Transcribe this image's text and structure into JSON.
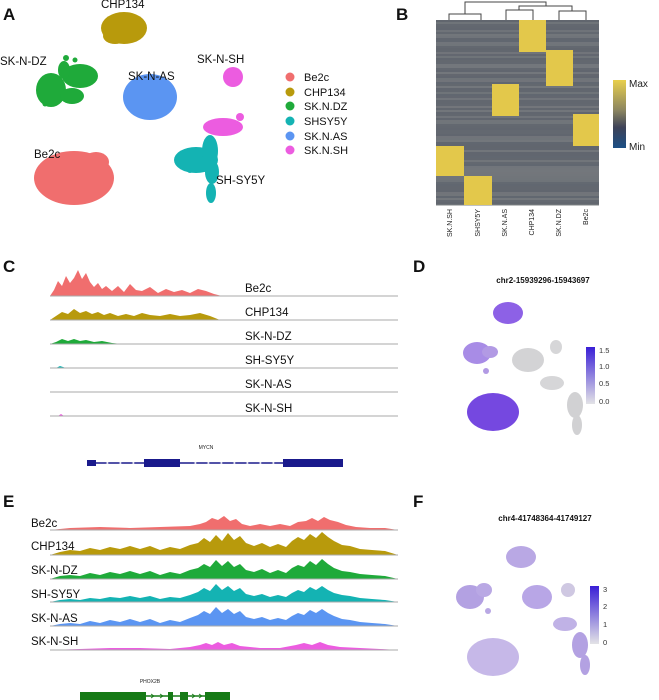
{
  "panels": {
    "A": "A",
    "B": "B",
    "C": "C",
    "D": "D",
    "E": "E",
    "F": "F"
  },
  "colors": {
    "Be2c": "#f06e6e",
    "CHP134": "#b89a0c",
    "SK.N.DZ": "#1faa3a",
    "SHSY5Y": "#14b3b3",
    "SK.N.AS": "#5b95f2",
    "SK.N.SH": "#ec5ce0",
    "mycn_gene": "#1a1a8c",
    "phox2b_gene": "#167a16",
    "hm_max": "#e3c84b",
    "hm_mid": "#3a3f5c",
    "hm_min": "#1e3a6e",
    "hm_bg": "#676c74"
  },
  "umap_labels": [
    "CHP134",
    "SK-N-DZ",
    "SK-N-AS",
    "SK-N-SH",
    "Be2c",
    "SH-SY5Y"
  ],
  "legend": [
    "Be2c",
    "CHP134",
    "SK.N.DZ",
    "SHSY5Y",
    "SK.N.AS",
    "SK.N.SH"
  ],
  "heatmap": {
    "columns": [
      "SK.N.SH",
      "SHSY5Y",
      "SK.N.AS",
      "CHP134",
      "SK.N.DZ",
      "Be2c"
    ],
    "max_label": "Max",
    "min_label": "Min"
  },
  "track_labels_C": [
    "Be2c",
    "CHP134",
    "SK-N-DZ",
    "SH-SY5Y",
    "SK-N-AS",
    "SK-N-SH"
  ],
  "track_labels_E": [
    "Be2c",
    "CHP134",
    "SK-N-DZ",
    "SH-SY5Y",
    "SK-N-AS",
    "SK-N-SH"
  ],
  "gene_C": "MYCN",
  "gene_E": "PHOX2B",
  "feature_D": {
    "title": "chr2-15939296-15943697",
    "ticks": [
      "1.5",
      "1.0",
      "0.5",
      "0.0"
    ]
  },
  "feature_F": {
    "title": "chr4-41748364-41749127",
    "ticks": [
      "3",
      "2",
      "1",
      "0"
    ]
  },
  "chart_data": [
    {
      "type": "scatter",
      "panel": "A",
      "title": "",
      "legend": [
        "Be2c",
        "CHP134",
        "SK.N.DZ",
        "SHSY5Y",
        "SK.N.AS",
        "SK.N.SH"
      ],
      "clusters": [
        "CHP134",
        "SK-N-DZ",
        "SK-N-AS",
        "SK-N-SH",
        "Be2c",
        "SH-SY5Y"
      ]
    },
    {
      "type": "heatmap",
      "panel": "B",
      "columns": [
        "SK.N.SH",
        "SHSY5Y",
        "SK.N.AS",
        "CHP134",
        "SK.N.DZ",
        "Be2c"
      ],
      "scale": [
        "Min",
        "Max"
      ]
    },
    {
      "type": "area",
      "panel": "C",
      "gene": "MYCN",
      "tracks": [
        "Be2c",
        "CHP134",
        "SK-N-DZ",
        "SH-SY5Y",
        "SK-N-AS",
        "SK-N-SH"
      ],
      "relative_signal": [
        0.9,
        0.45,
        0.3,
        0.03,
        0.02,
        0.02
      ]
    },
    {
      "type": "scatter",
      "panel": "D",
      "title": "chr2-15939296-15943697",
      "colorbar": [
        0.0,
        0.5,
        1.0,
        1.5
      ]
    },
    {
      "type": "area",
      "panel": "E",
      "gene": "PHOX2B",
      "tracks": [
        "Be2c",
        "CHP134",
        "SK-N-DZ",
        "SH-SY5Y",
        "SK-N-AS",
        "SK-N-SH"
      ],
      "relative_signal": [
        0.6,
        0.95,
        0.9,
        0.85,
        0.9,
        0.35
      ]
    },
    {
      "type": "scatter",
      "panel": "F",
      "title": "chr4-41748364-41749127",
      "colorbar": [
        0,
        1,
        2,
        3
      ]
    }
  ]
}
